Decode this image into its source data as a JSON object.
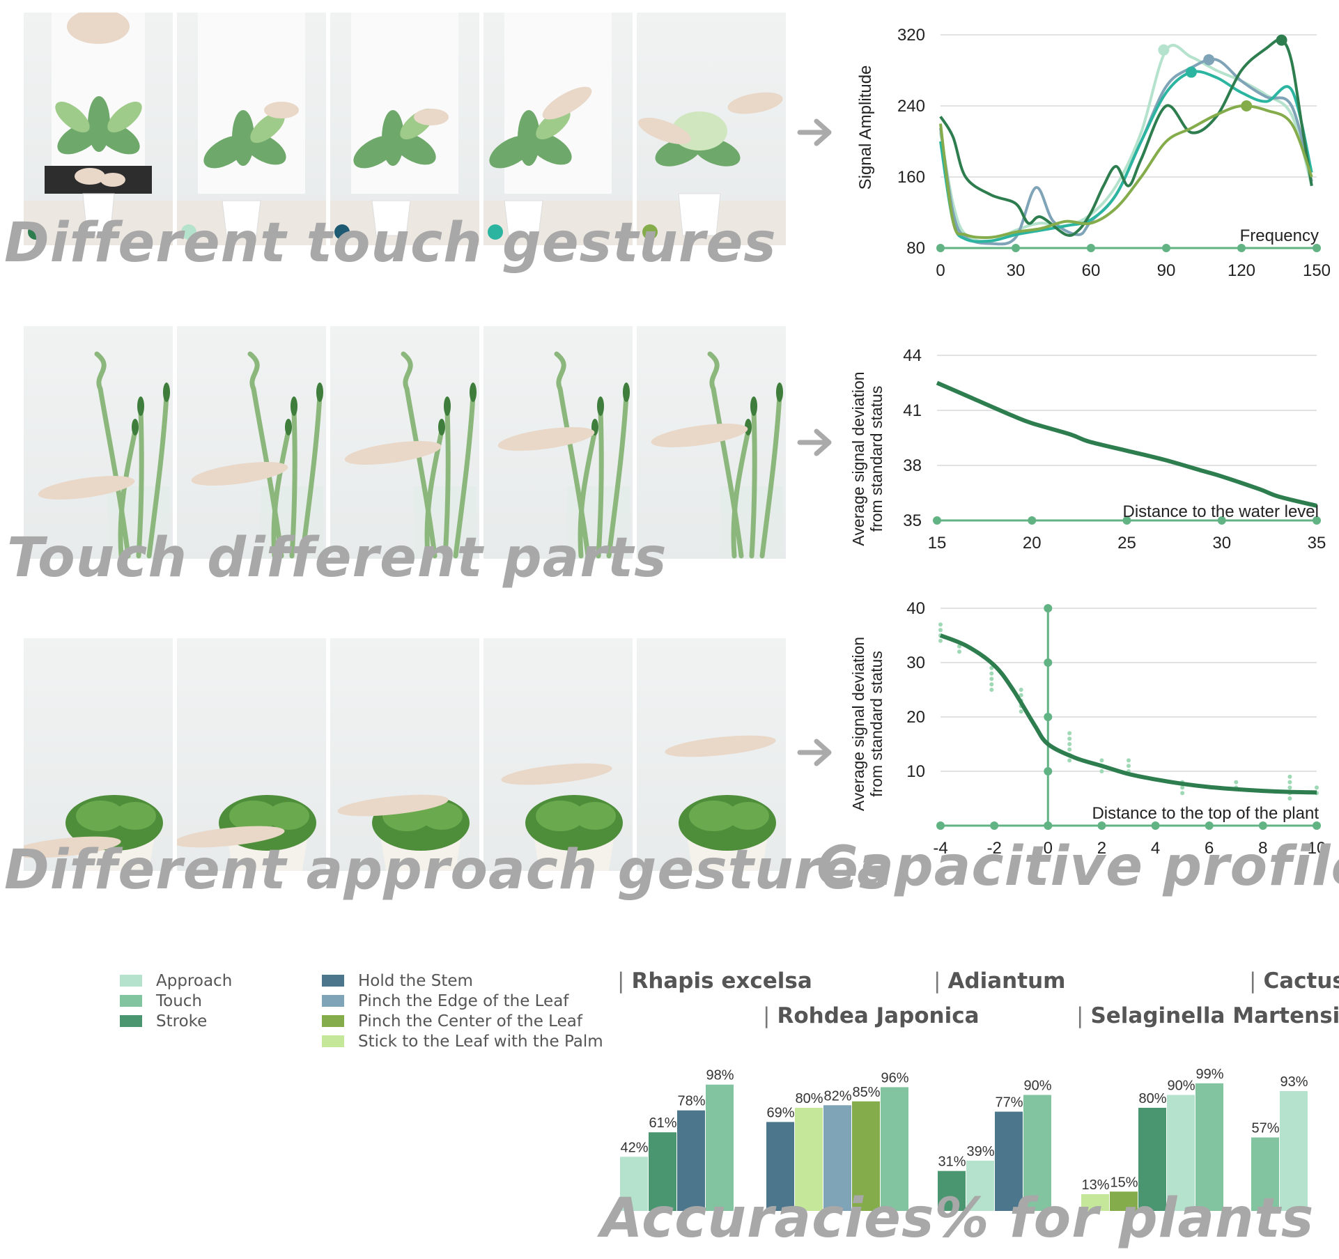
{
  "captions": {
    "row1": "Different touch gestures",
    "row2": "Touch different parts",
    "row3": "Different approach gestures",
    "profiles": "Capacitive profiles",
    "accuracies": "Accuracies% for plants"
  },
  "colors": {
    "approach": "#b5e2cc",
    "touch": "#82c49f",
    "stroke": "#4a9670",
    "hold_stem": "#4b768c",
    "pinch_edge": "#7fa3b7",
    "pinch_center": "#84ac4a",
    "stick_palm": "#c4e79a",
    "accent": "#2e7d4f"
  },
  "row1_dots": [
    "#2e7d4f",
    "#b5e2cc",
    "#1f5a73",
    "#2bb5a0",
    "#84ac4a"
  ],
  "legend": {
    "left": [
      {
        "label": "Approach",
        "color": "#b5e2cc"
      },
      {
        "label": "Touch",
        "color": "#82c49f"
      },
      {
        "label": "Stroke",
        "color": "#4a9670"
      }
    ],
    "right": [
      {
        "label": "Hold the Stem",
        "color": "#4b768c"
      },
      {
        "label": "Pinch the Edge of the Leaf",
        "color": "#7fa3b7"
      },
      {
        "label": "Pinch the Center of the Leaf",
        "color": "#84ac4a"
      },
      {
        "label": "Stick to the Leaf with the Palm",
        "color": "#c4e79a"
      }
    ]
  },
  "plant_titles": {
    "rhapis": "Rhapis excelsa",
    "rohdea": "Rohdea Japonica",
    "adiantum": "Adiantum",
    "selaginella": "Selaginella Martensii",
    "cactus": "Cactus"
  },
  "chart_data": [
    {
      "type": "line",
      "ylabel": "Signal Amplitude",
      "xlabel": "Frequency",
      "xlim": [
        0,
        150
      ],
      "ylim": [
        80,
        320
      ],
      "xticks": [
        0,
        30,
        60,
        90,
        120,
        150
      ],
      "yticks": [
        80,
        160,
        240,
        320
      ],
      "series": [
        {
          "color": "#b5e2cc",
          "x": [
            0,
            5,
            10,
            20,
            30,
            40,
            50,
            60,
            70,
            80,
            90,
            100,
            110,
            120,
            130,
            140,
            148
          ],
          "y": [
            210,
            130,
            95,
            88,
            100,
            108,
            105,
            118,
            150,
            210,
            303,
            295,
            280,
            268,
            252,
            230,
            150
          ]
        },
        {
          "color": "#7fa3b7",
          "x": [
            0,
            5,
            10,
            20,
            30,
            38,
            45,
            55,
            60,
            70,
            80,
            90,
            100,
            110,
            120,
            130,
            140,
            148
          ],
          "y": [
            215,
            120,
            92,
            85,
            92,
            148,
            110,
            95,
            110,
            140,
            200,
            262,
            283,
            292,
            268,
            250,
            240,
            155
          ]
        },
        {
          "color": "#2bb5a0",
          "x": [
            0,
            5,
            10,
            20,
            30,
            40,
            50,
            60,
            70,
            80,
            90,
            100,
            110,
            120,
            130,
            140,
            148
          ],
          "y": [
            200,
            110,
            90,
            88,
            95,
            100,
            105,
            112,
            140,
            200,
            255,
            278,
            272,
            255,
            245,
            258,
            165
          ]
        },
        {
          "color": "#2e7d4f",
          "x": [
            0,
            5,
            10,
            20,
            30,
            35,
            40,
            50,
            55,
            60,
            65,
            70,
            75,
            80,
            90,
            100,
            110,
            120,
            130,
            136,
            140,
            144,
            148
          ],
          "y": [
            228,
            205,
            160,
            140,
            130,
            108,
            115,
            95,
            100,
            120,
            150,
            172,
            150,
            180,
            240,
            210,
            228,
            280,
            305,
            314,
            290,
            220,
            150
          ]
        },
        {
          "color": "#84ac4a",
          "x": [
            0,
            5,
            10,
            20,
            30,
            40,
            50,
            60,
            70,
            80,
            90,
            100,
            110,
            120,
            130,
            140,
            148
          ],
          "y": [
            220,
            110,
            95,
            92,
            98,
            102,
            110,
            108,
            125,
            160,
            200,
            215,
            230,
            240,
            235,
            220,
            160
          ]
        }
      ],
      "markers": [
        {
          "x": 89,
          "y": 303,
          "color": "#b5e2cc"
        },
        {
          "x": 107,
          "y": 292,
          "color": "#7fa3b7"
        },
        {
          "x": 100,
          "y": 278,
          "color": "#2bb5a0"
        },
        {
          "x": 136,
          "y": 314,
          "color": "#2e7d4f"
        },
        {
          "x": 122,
          "y": 240,
          "color": "#84ac4a"
        }
      ]
    },
    {
      "type": "line",
      "ylabel": "Average signal deviation from standard status",
      "xlabel": "Distance to the water level",
      "xlim": [
        15,
        35
      ],
      "ylim": [
        35,
        44
      ],
      "xticks": [
        15,
        20,
        25,
        30,
        35
      ],
      "yticks": [
        35,
        38,
        41,
        44
      ],
      "series": [
        {
          "color": "#2e7d4f",
          "x": [
            15,
            17,
            19,
            20,
            22,
            23,
            25,
            27,
            29,
            30,
            32,
            33,
            35
          ],
          "y": [
            42.5,
            41.6,
            40.7,
            40.3,
            39.7,
            39.3,
            38.8,
            38.3,
            37.7,
            37.4,
            36.7,
            36.3,
            35.8
          ]
        }
      ]
    },
    {
      "type": "line",
      "ylabel": "Average signal deviation from standard status",
      "xlabel": "Distance to the top of the plant",
      "xlim": [
        -4,
        10
      ],
      "ylim": [
        0,
        40
      ],
      "xticks": [
        -4,
        -2,
        0,
        2,
        4,
        6,
        8,
        10
      ],
      "yticks": [
        10,
        20,
        30,
        40
      ],
      "series": [
        {
          "color": "#2e7d4f",
          "x": [
            -4,
            -3,
            -2,
            -1.3,
            -0.5,
            0,
            1,
            2,
            3,
            4,
            5,
            6,
            7,
            8,
            9,
            10
          ],
          "y": [
            35,
            33,
            29.5,
            25,
            18.5,
            15,
            12.5,
            11,
            9.5,
            8.5,
            7.7,
            7.1,
            6.7,
            6.4,
            6.2,
            6.1
          ]
        }
      ],
      "scatter": [
        {
          "x": -4,
          "y": [
            37,
            36,
            35,
            34
          ]
        },
        {
          "x": -3.3,
          "y": [
            33,
            32
          ]
        },
        {
          "x": -2.1,
          "y": [
            29,
            28,
            27,
            26,
            25
          ]
        },
        {
          "x": -1,
          "y": [
            25,
            24,
            23,
            22,
            21
          ]
        },
        {
          "x": 0.8,
          "y": [
            17,
            16,
            15,
            14,
            13,
            12
          ]
        },
        {
          "x": 2,
          "y": [
            12,
            11,
            10
          ]
        },
        {
          "x": 3,
          "y": [
            12,
            11,
            10
          ]
        },
        {
          "x": 5,
          "y": [
            8,
            7,
            6
          ]
        },
        {
          "x": 7,
          "y": [
            8,
            7
          ]
        },
        {
          "x": 9,
          "y": [
            9,
            8,
            7,
            6,
            5
          ]
        },
        {
          "x": 10,
          "y": [
            7,
            6
          ]
        }
      ],
      "vline_points": [
        0,
        10,
        20,
        30,
        40
      ]
    },
    {
      "type": "bar",
      "groups": [
        {
          "name": "Rhapis excelsa",
          "bars": [
            {
              "label": "42%",
              "value": 42,
              "color": "#b5e2cc"
            },
            {
              "label": "61%",
              "value": 61,
              "color": "#4a9670"
            },
            {
              "label": "78%",
              "value": 78,
              "color": "#4b768c"
            },
            {
              "label": "98%",
              "value": 98,
              "color": "#82c49f"
            }
          ]
        },
        {
          "name": "Rohdea Japonica",
          "bars": [
            {
              "label": "69%",
              "value": 69,
              "color": "#4b768c"
            },
            {
              "label": "80%",
              "value": 80,
              "color": "#c4e79a"
            },
            {
              "label": "82%",
              "value": 82,
              "color": "#7fa3b7"
            },
            {
              "label": "85%",
              "value": 85,
              "color": "#84ac4a"
            },
            {
              "label": "96%",
              "value": 96,
              "color": "#82c49f"
            }
          ]
        },
        {
          "name": "Adiantum",
          "bars": [
            {
              "label": "31%",
              "value": 31,
              "color": "#4a9670"
            },
            {
              "label": "39%",
              "value": 39,
              "color": "#b5e2cc"
            },
            {
              "label": "77%",
              "value": 77,
              "color": "#4b768c"
            },
            {
              "label": "90%",
              "value": 90,
              "color": "#82c49f"
            }
          ]
        },
        {
          "name": "Selaginella Martensii",
          "bars": [
            {
              "label": "13%",
              "value": 13,
              "color": "#c4e79a"
            },
            {
              "label": "15%",
              "value": 15,
              "color": "#84ac4a"
            },
            {
              "label": "80%",
              "value": 80,
              "color": "#4a9670"
            },
            {
              "label": "90%",
              "value": 90,
              "color": "#b5e2cc"
            },
            {
              "label": "99%",
              "value": 99,
              "color": "#82c49f"
            }
          ]
        },
        {
          "name": "Cactus",
          "bars": [
            {
              "label": "57%",
              "value": 57,
              "color": "#82c49f"
            },
            {
              "label": "93%",
              "value": 93,
              "color": "#b5e2cc"
            }
          ]
        }
      ]
    }
  ]
}
